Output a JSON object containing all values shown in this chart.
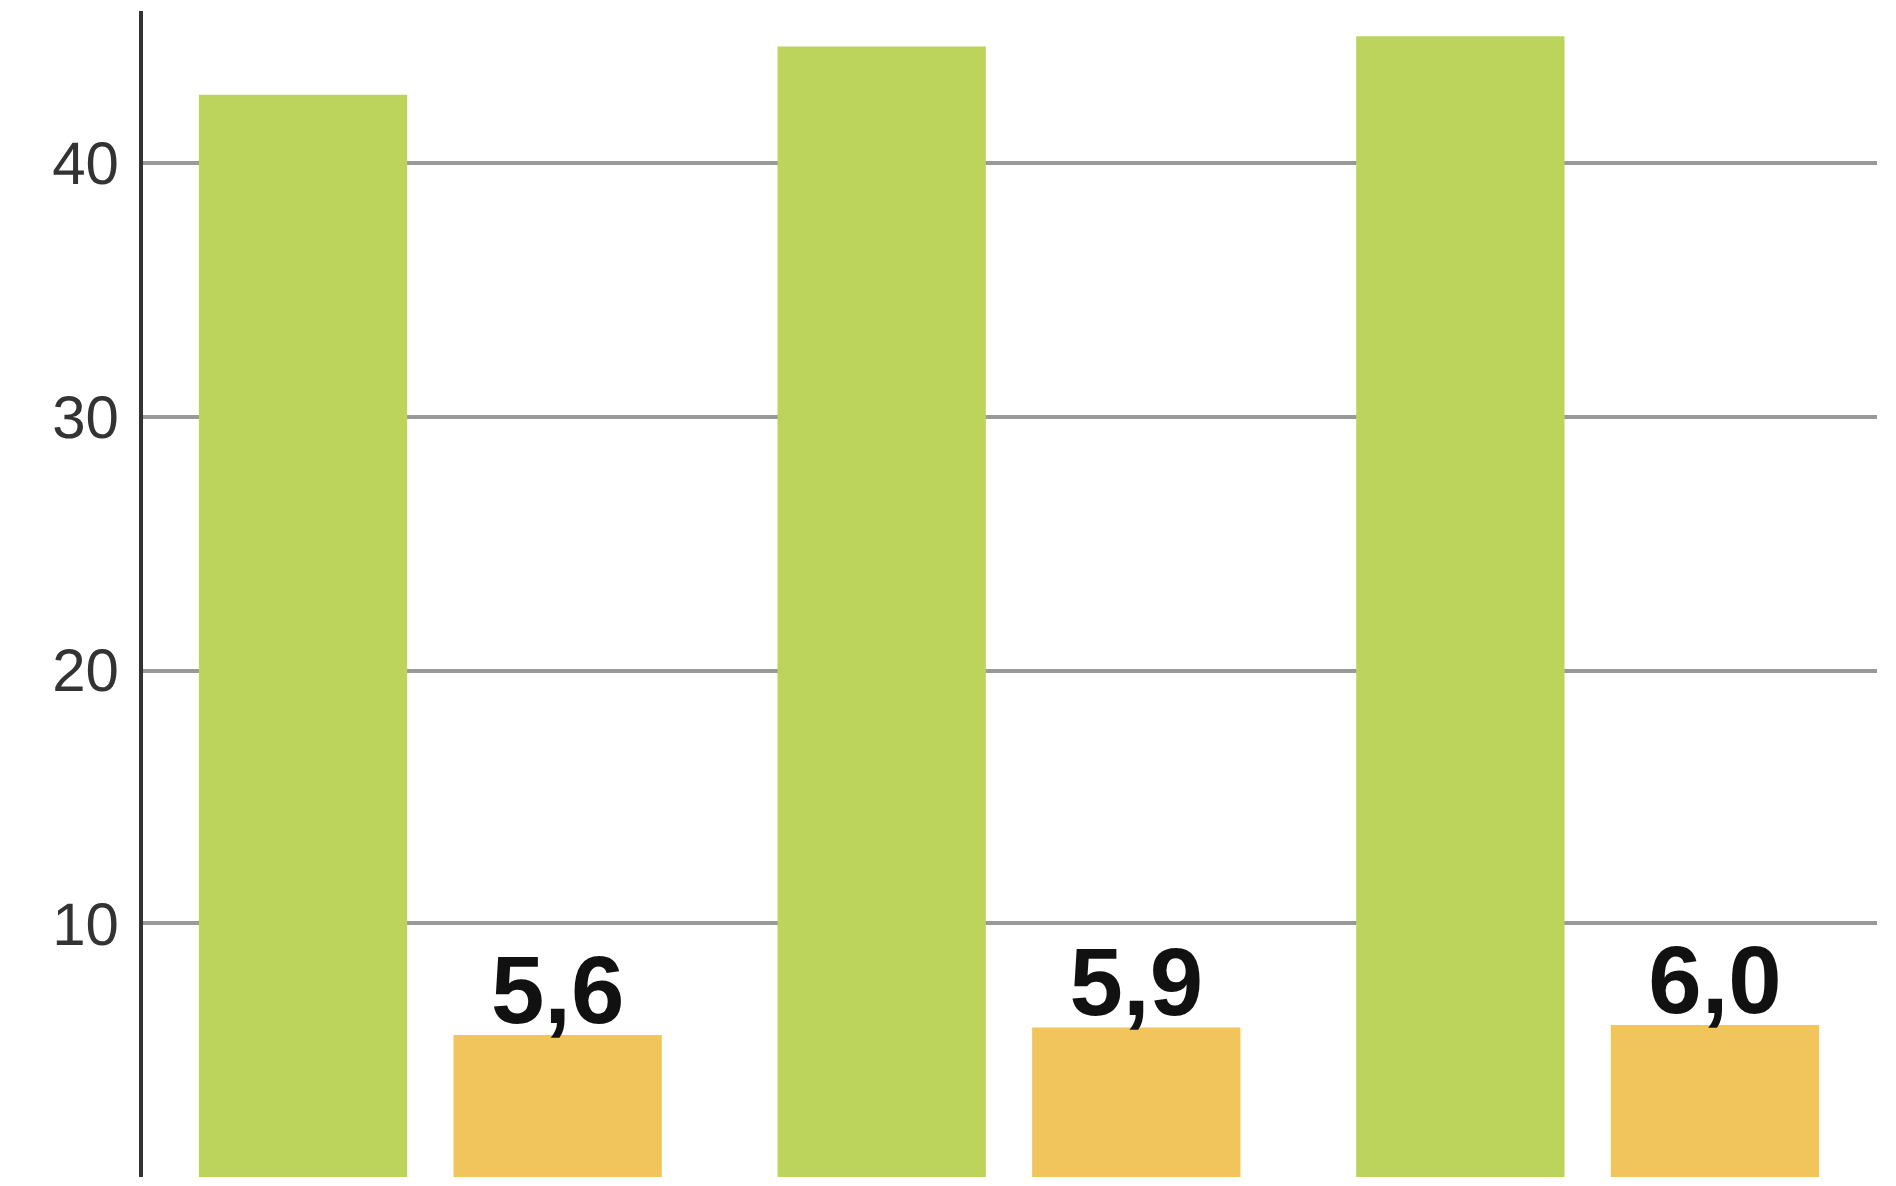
{
  "chart_data": {
    "type": "bar",
    "categories": [
      null,
      null,
      null
    ],
    "series": [
      {
        "color": "#bcd35c",
        "values": [
          42.7,
          44.6,
          45.0
        ]
      },
      {
        "color": "#f2c55c",
        "values": [
          5.6,
          5.9,
          6.0
        ],
        "value_labels": [
          "5,6",
          "5,9",
          "6,0"
        ]
      }
    ],
    "ylim": [
      0,
      46
    ],
    "yticks": [
      10,
      20,
      30,
      40
    ],
    "grid": "y"
  }
}
